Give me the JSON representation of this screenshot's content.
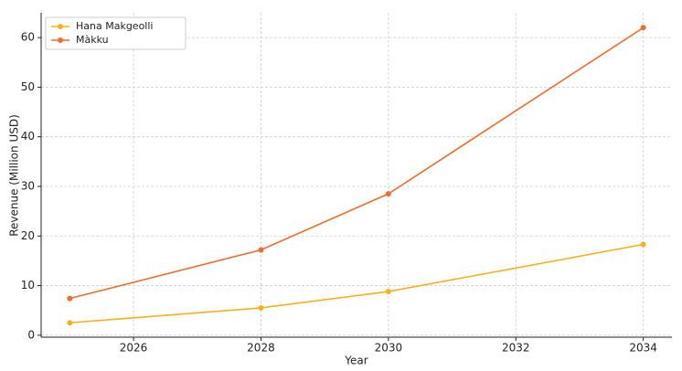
{
  "chart_data": {
    "type": "line",
    "x_label": "Year",
    "y_label": "Revenue (Million USD)",
    "x": [
      2025,
      2028,
      2030,
      2034
    ],
    "series": [
      {
        "name": "Hana Makgeolli",
        "color": "#fbb018",
        "values": [
          2.5,
          5.5,
          8.8,
          18.3
        ]
      },
      {
        "name": "Màkku",
        "color": "#f26b2a",
        "values": [
          7.4,
          17.2,
          28.5,
          62.0
        ]
      }
    ],
    "xlim": [
      2024.55,
      2034.45
    ],
    "ylim": [
      -0.4,
      65
    ],
    "xticks": [
      2026,
      2028,
      2030,
      2032,
      2034
    ],
    "yticks": [
      0,
      10,
      20,
      30,
      40,
      50,
      60
    ],
    "grid": true,
    "legend": "upper-left"
  }
}
